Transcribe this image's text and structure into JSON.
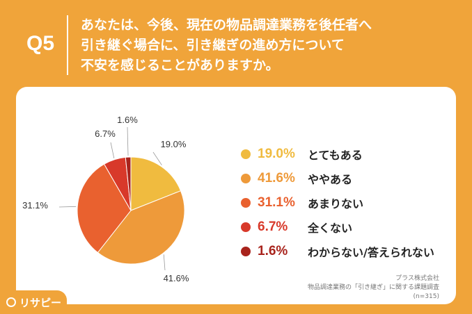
{
  "header": {
    "qlabel": "Q5",
    "question_lines": [
      "あなたは、今後、現在の物品調達業務を後任者へ",
      "引き継ぐ場合に、引き継ぎの進め方について",
      "不安を感じることがありますか。"
    ]
  },
  "chart_data": {
    "type": "pie",
    "title": "",
    "slices": [
      {
        "label": "とてもある",
        "value": 19.0,
        "display": "19.0%",
        "color": "#f0bb3f"
      },
      {
        "label": "ややある",
        "value": 41.6,
        "display": "41.6%",
        "color": "#ee9a3a"
      },
      {
        "label": "あまりない",
        "value": 31.1,
        "display": "31.1%",
        "color": "#e9612f"
      },
      {
        "label": "全くない",
        "value": 6.7,
        "display": "6.7%",
        "color": "#d8392a"
      },
      {
        "label": "わからない/答えられない",
        "value": 1.6,
        "display": "1.6%",
        "color": "#a8231c"
      }
    ],
    "legend_position": "right"
  },
  "source": {
    "company": "プラス株式会社",
    "survey": "物品調達業務の「引き継ぎ」に関する課題調査",
    "n": "(n=315)"
  },
  "logo": {
    "text": "リサピー"
  }
}
